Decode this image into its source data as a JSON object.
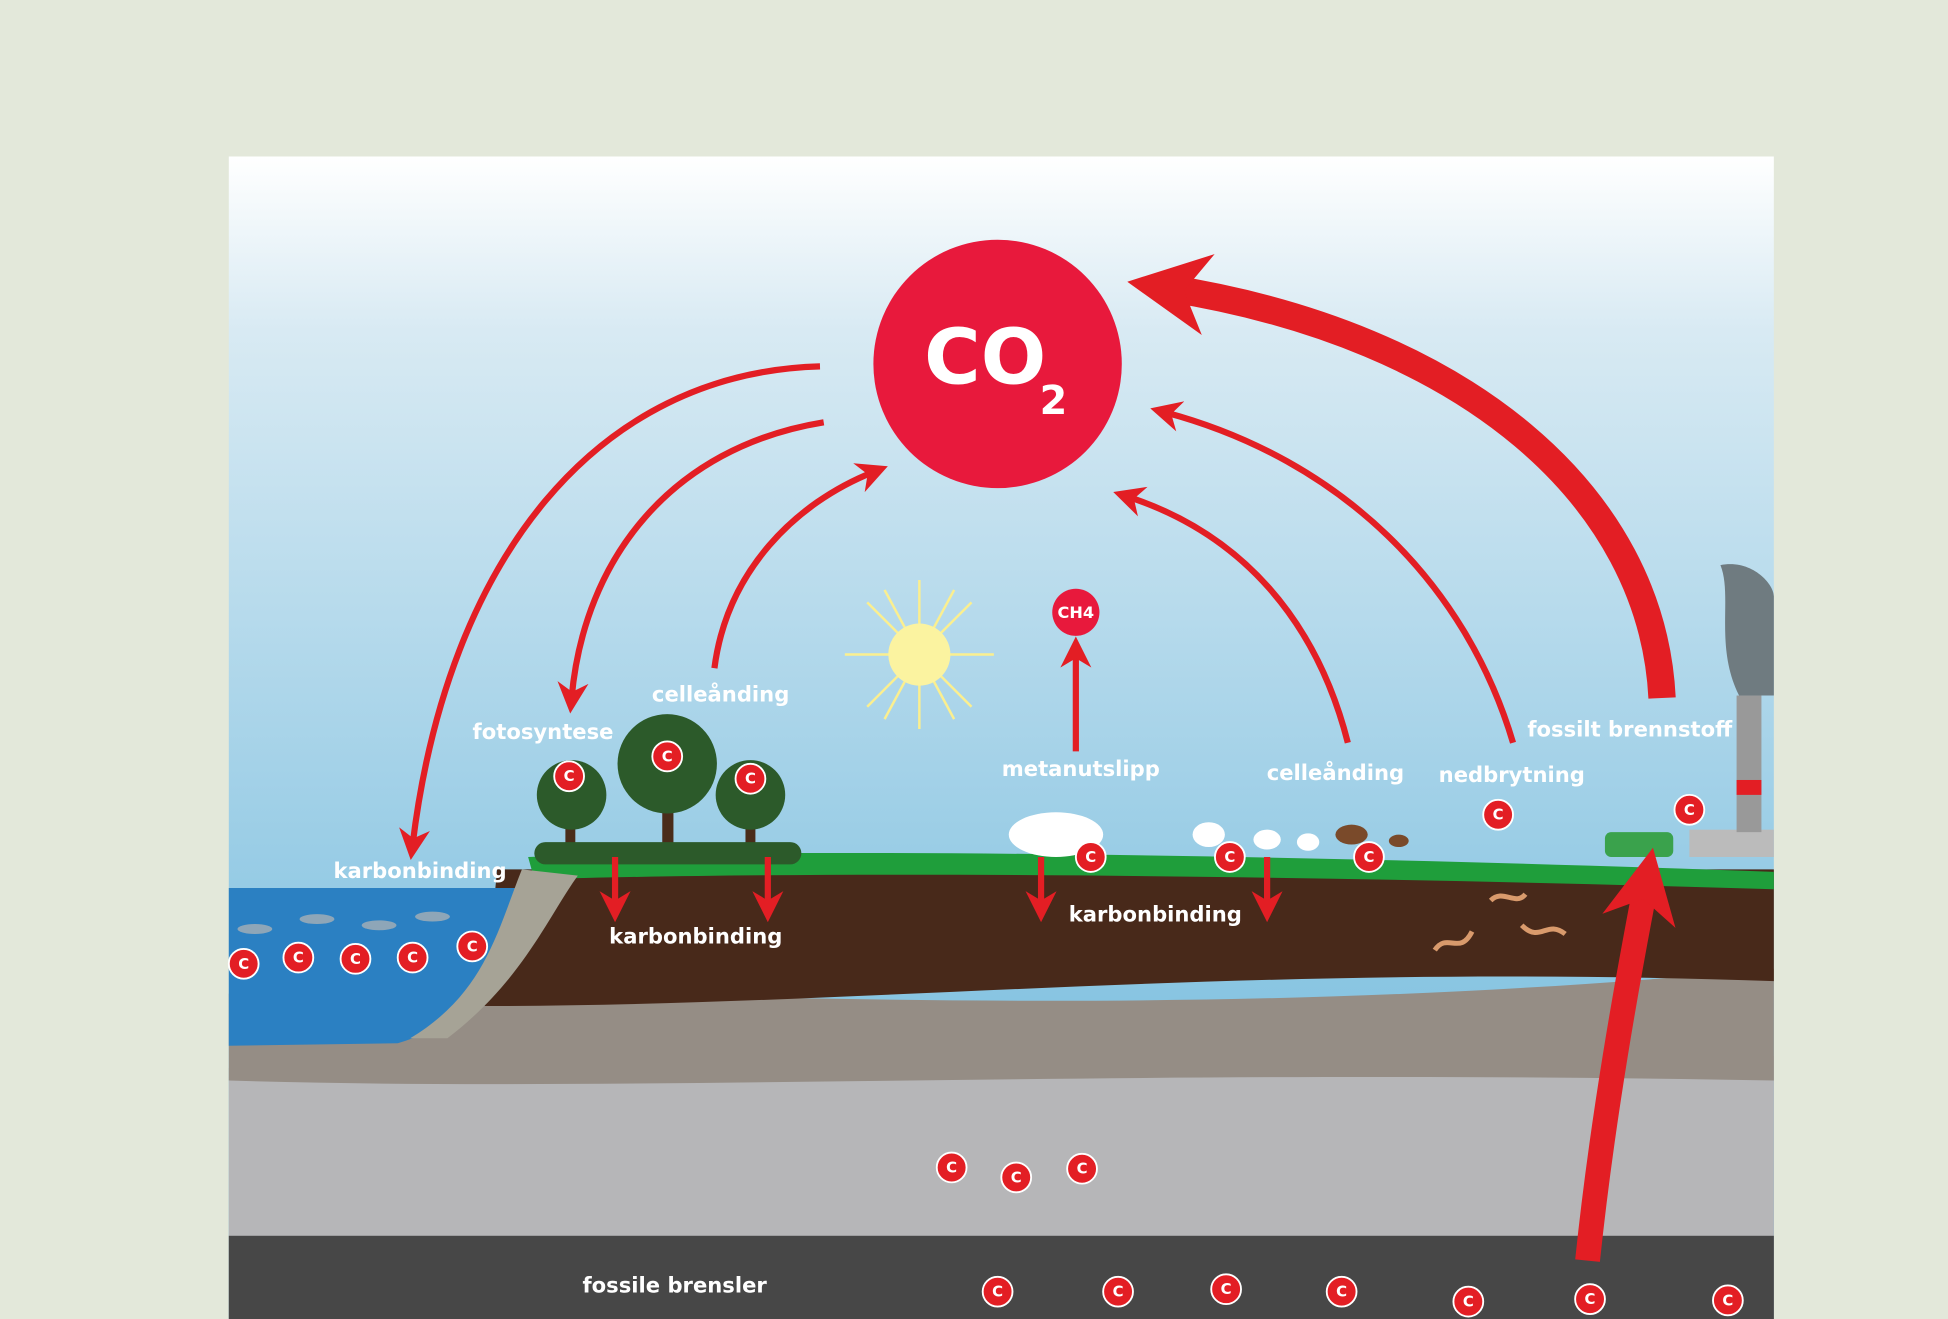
{
  "center": {
    "formula": "CO",
    "subscript": "2"
  },
  "methane": "CH4",
  "atom_label": "C",
  "labels": [
    "karbonbinding",
    "fotosyntese",
    "celleånding",
    "karbonbinding",
    "metanutslipp",
    "karbonbinding",
    "celleånding",
    "nedbrytning",
    "fossilt brennstoff",
    "fossile brensler"
  ]
}
